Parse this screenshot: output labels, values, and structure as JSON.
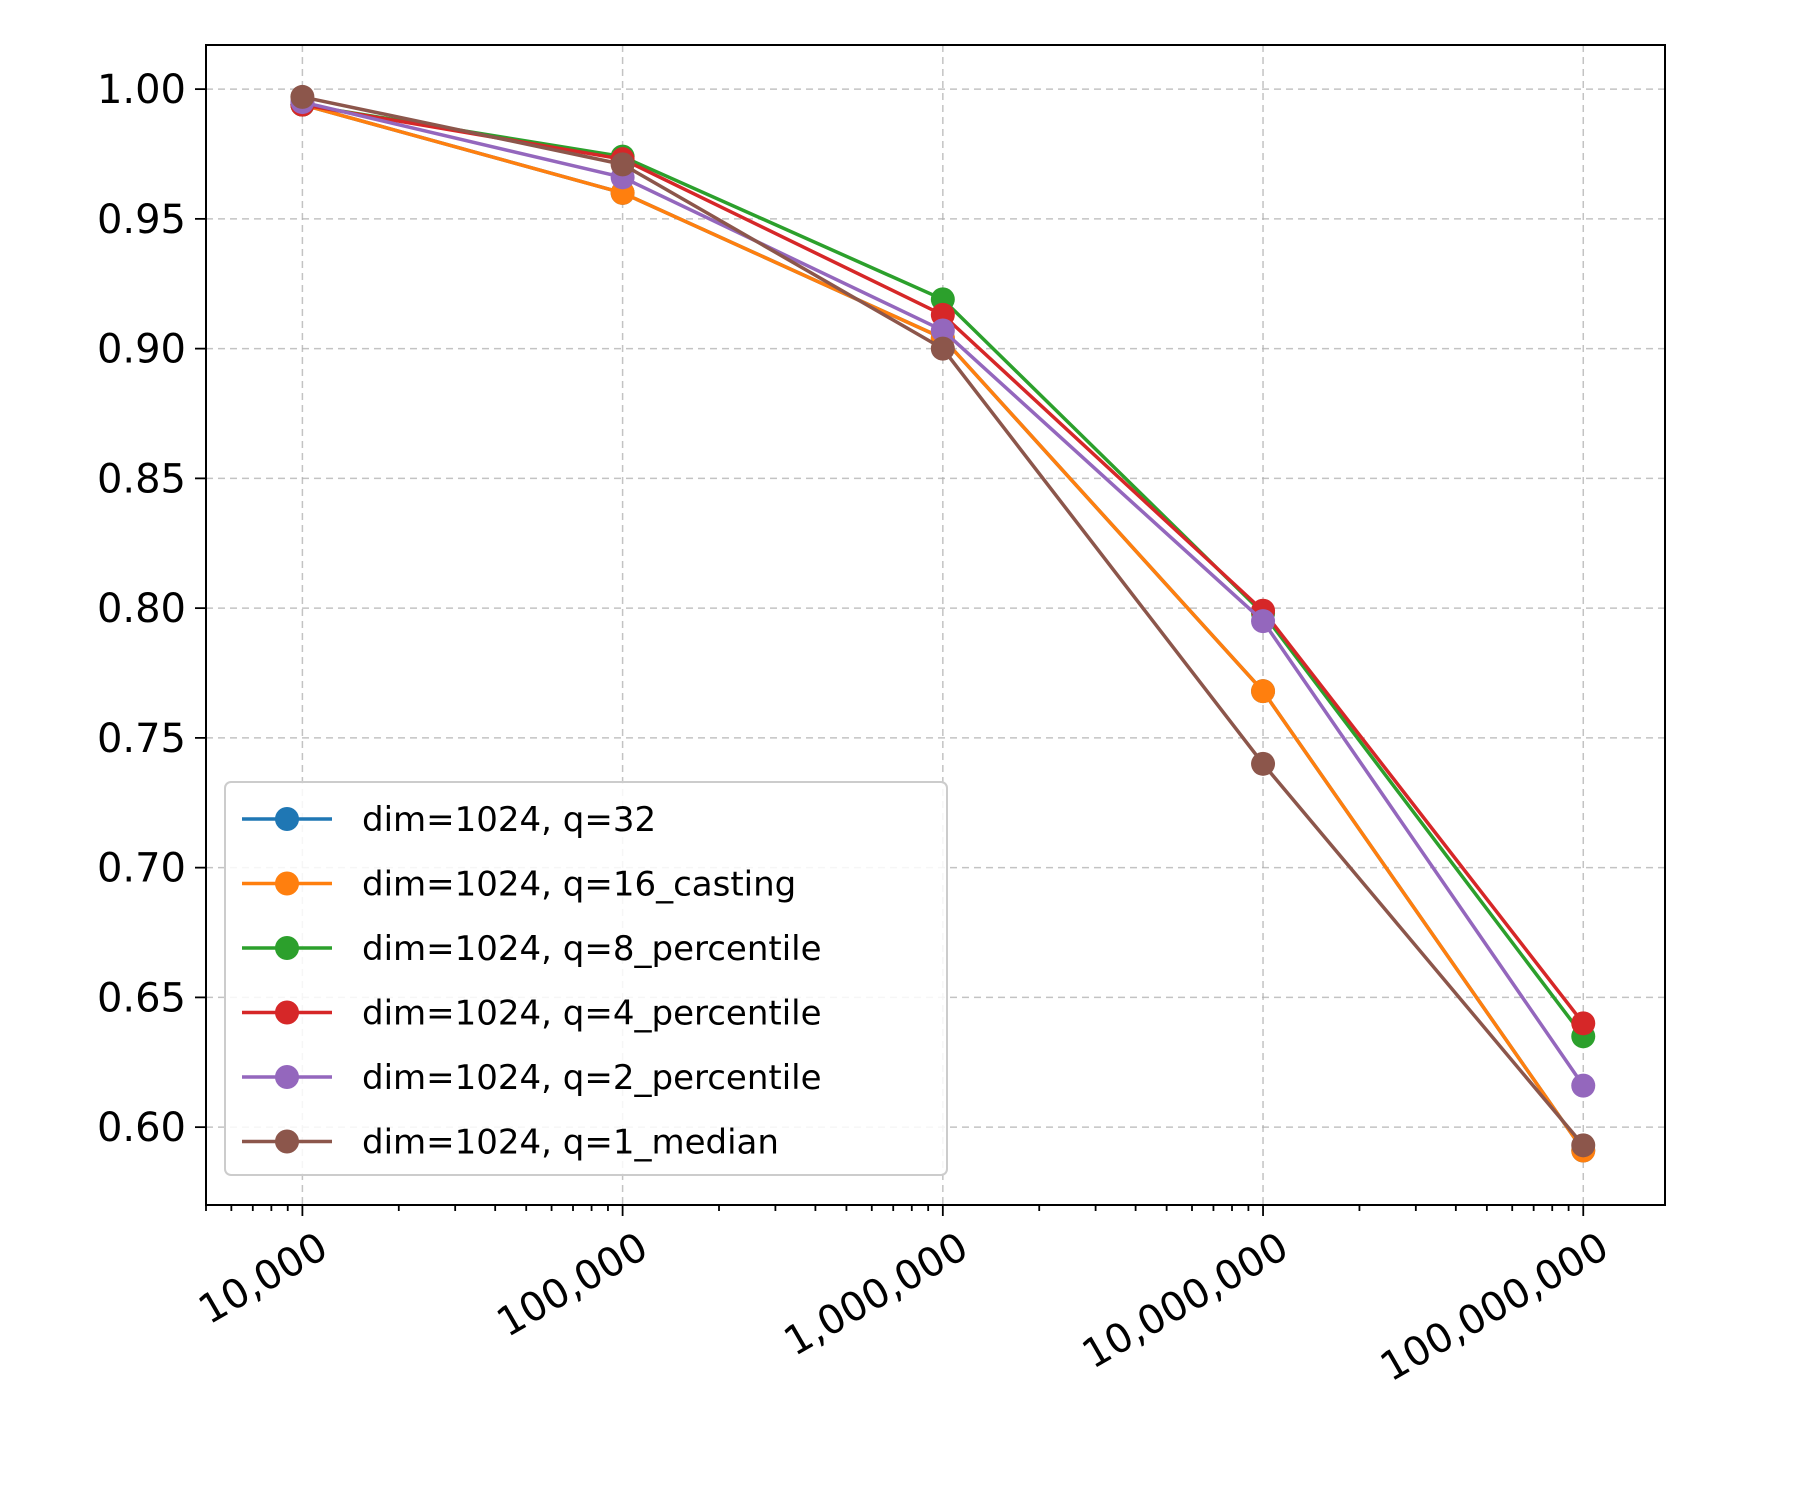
{
  "chart_data": {
    "type": "line",
    "title": "",
    "xlabel": "",
    "ylabel": "",
    "xscale": "log",
    "x": [
      10000,
      100000,
      1000000,
      10000000,
      100000000
    ],
    "xtick_labels": [
      "10,000",
      "100,000",
      "1,000,000",
      "10,000,000",
      "100,000,000"
    ],
    "xtick_rotation": 30,
    "xlim": [
      5000,
      180000000
    ],
    "ylim": [
      0.57,
      1.017
    ],
    "yticks": [
      0.6,
      0.65,
      0.7,
      0.75,
      0.8,
      0.85,
      0.9,
      0.95,
      1.0
    ],
    "ytick_labels": [
      "0.60",
      "0.65",
      "0.70",
      "0.75",
      "0.80",
      "0.85",
      "0.90",
      "0.95",
      "1.00"
    ],
    "grid": true,
    "legend_position": "lower-left",
    "series": [
      {
        "name": "dim=1024, q=32",
        "color": "#1f77b4",
        "values": [
          0.994,
          0.96,
          0.904,
          0.768,
          0.591
        ]
      },
      {
        "name": "dim=1024, q=16_casting",
        "color": "#ff7f0e",
        "values": [
          0.994,
          0.96,
          0.904,
          0.768,
          0.591
        ]
      },
      {
        "name": "dim=1024, q=8_percentile",
        "color": "#2ca02c",
        "values": [
          0.994,
          0.974,
          0.919,
          0.798,
          0.635
        ]
      },
      {
        "name": "dim=1024, q=4_percentile",
        "color": "#d62728",
        "values": [
          0.994,
          0.973,
          0.913,
          0.799,
          0.64
        ]
      },
      {
        "name": "dim=1024, q=2_percentile",
        "color": "#9467bd",
        "values": [
          0.995,
          0.966,
          0.907,
          0.795,
          0.616
        ]
      },
      {
        "name": "dim=1024, q=1_median",
        "color": "#8c564b",
        "values": [
          0.997,
          0.971,
          0.9,
          0.74,
          0.593
        ]
      }
    ]
  }
}
